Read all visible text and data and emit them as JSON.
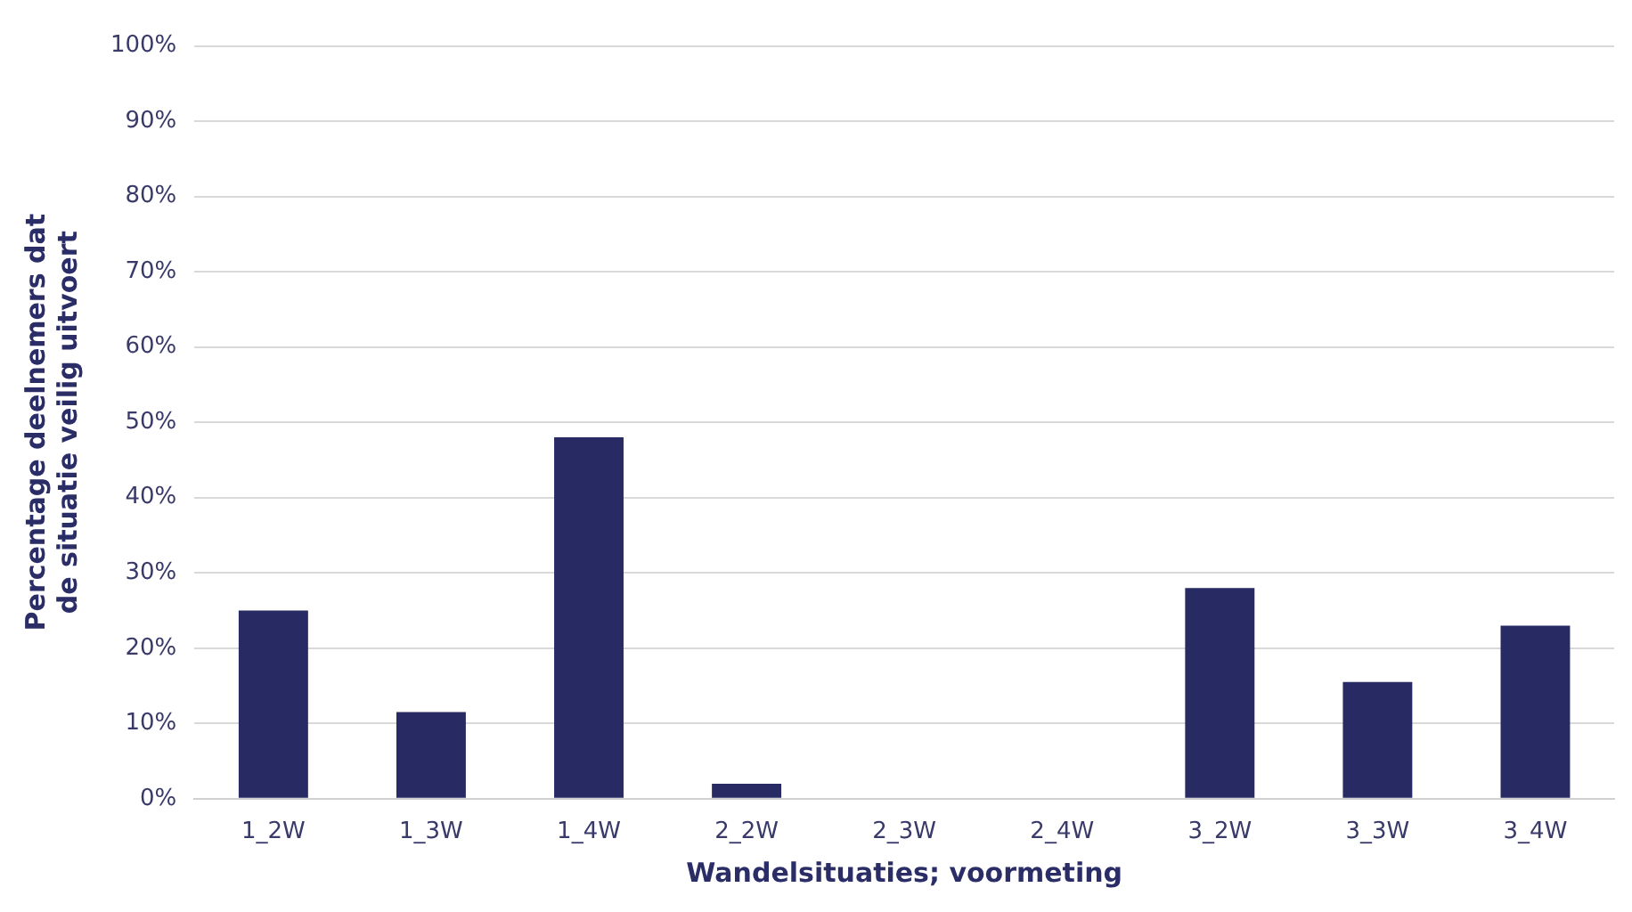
{
  "chart_data": {
    "type": "bar",
    "xlabel": "Wandelsituaties; voormeting",
    "ylabel": "Percentage deelnemers dat de situatie veilig uitvoert",
    "categories": [
      "1_2W",
      "1_3W",
      "1_4W",
      "2_2W",
      "2_3W",
      "2_4W",
      "3_2W",
      "3_3W",
      "3_4W"
    ],
    "values": [
      25,
      11.5,
      48,
      2,
      0,
      0,
      28,
      15.5,
      23
    ],
    "color": "#272a63",
    "ylim": [
      0,
      100
    ],
    "yticks": [
      {
        "value": 0,
        "label": "0%"
      },
      {
        "value": 10,
        "label": "10%"
      },
      {
        "value": 20,
        "label": "20%"
      },
      {
        "value": 30,
        "label": "30%"
      },
      {
        "value": 40,
        "label": "40%"
      },
      {
        "value": 50,
        "label": "50%"
      },
      {
        "value": 60,
        "label": "60%"
      },
      {
        "value": 70,
        "label": "70%"
      },
      {
        "value": 80,
        "label": "80%"
      },
      {
        "value": 90,
        "label": "90%"
      },
      {
        "value": 100,
        "label": "100%"
      }
    ],
    "grid": "y",
    "legend": false
  }
}
